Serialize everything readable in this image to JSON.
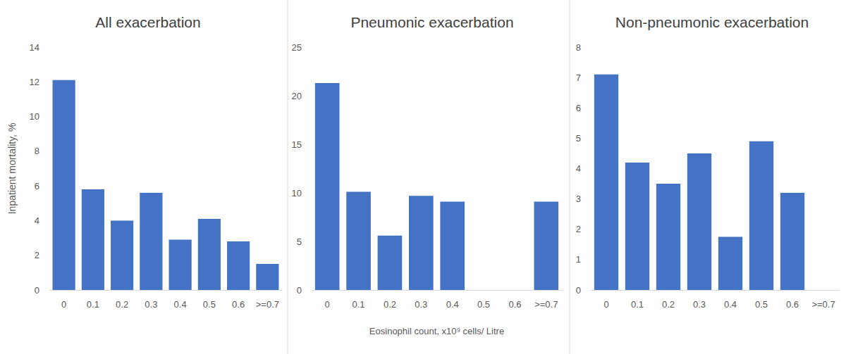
{
  "chart_data": [
    {
      "type": "bar",
      "title": "All exacerbation",
      "y_label": "Inpatient mortality, %",
      "categories": [
        "0",
        "0.1",
        "0.2",
        "0.3",
        "0.4",
        "0.5",
        "0.6",
        ">=0.7"
      ],
      "values": [
        12.1,
        5.8,
        4.0,
        5.6,
        2.9,
        4.1,
        2.8,
        1.5
      ],
      "color": "#4472c4",
      "ylim": [
        0,
        14
      ],
      "yticks": [
        0,
        2,
        4,
        6,
        8,
        10,
        12,
        14
      ],
      "grid": false
    },
    {
      "type": "bar",
      "title": "Pneumonic exacerbation",
      "x_label": "Eosinophil count, x10⁹ cells/ Litre",
      "categories": [
        "0",
        "0.1",
        "0.2",
        "0.3",
        "0.4",
        "0.5",
        "0.6",
        ">=0.7"
      ],
      "values": [
        21.3,
        10.1,
        5.6,
        9.7,
        9.1,
        0,
        0,
        9.1
      ],
      "color": "#4472c4",
      "ylim": [
        0,
        25
      ],
      "yticks": [
        0,
        5,
        10,
        15,
        20,
        25
      ],
      "grid": false
    },
    {
      "type": "bar",
      "title": "Non-pneumonic exacerbation",
      "categories": [
        "0",
        "0.1",
        "0.2",
        "0.3",
        "0.4",
        "0.5",
        "0.6",
        ">=0.7"
      ],
      "values": [
        7.1,
        4.2,
        3.5,
        4.5,
        1.75,
        4.9,
        3.2,
        0
      ],
      "color": "#4472c4",
      "ylim": [
        0,
        8
      ],
      "yticks": [
        0,
        1,
        2,
        3,
        4,
        5,
        6,
        7,
        8
      ],
      "grid": false
    }
  ]
}
